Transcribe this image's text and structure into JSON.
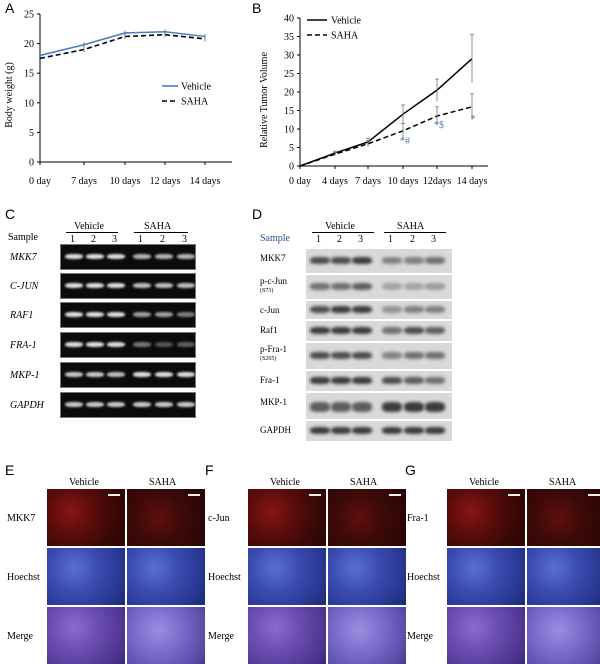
{
  "panels": {
    "A": "A",
    "B": "B",
    "C": "C",
    "D": "D",
    "E": "E",
    "F": "F",
    "G": "G"
  },
  "chartA": {
    "ylabel": "Body weight (g)",
    "yticks": [
      "0",
      "5",
      "10",
      "15",
      "20",
      "25"
    ],
    "xticks": [
      "0 day",
      "7 days",
      "10 days",
      "12 days",
      "14 days"
    ],
    "legend": [
      "Vehicle",
      "SAHA"
    ],
    "colors": {
      "vehicle": "#4a7fc1",
      "saha": "#000000"
    }
  },
  "chartB": {
    "ylabel": "Relative Tumor Volume",
    "yticks": [
      "0",
      "5",
      "10",
      "15",
      "20",
      "25",
      "30",
      "35",
      "40"
    ],
    "xticks": [
      "0 day",
      "4 days",
      "7 days",
      "10 days",
      "12days",
      "14 days"
    ],
    "legend": [
      "Vehicle",
      "SAHA"
    ],
    "annotations": [
      "*#",
      "*$",
      "*"
    ]
  },
  "chart_data": [
    {
      "type": "line",
      "title": "",
      "ylabel": "Body weight (g)",
      "ylim": [
        0,
        25
      ],
      "categories": [
        "0 day",
        "7 days",
        "10 days",
        "12 days",
        "14 days"
      ],
      "series": [
        {
          "name": "Vehicle",
          "values": [
            18,
            19.8,
            21.8,
            22,
            21.2
          ]
        },
        {
          "name": "SAHA",
          "values": [
            17.5,
            19,
            21.2,
            21.5,
            20.8
          ]
        }
      ],
      "legend": "right"
    },
    {
      "type": "line",
      "title": "",
      "ylabel": "Relative Tumor Volume",
      "ylim": [
        0,
        40
      ],
      "categories": [
        "0 day",
        "4 days",
        "7 days",
        "10 days",
        "12days",
        "14 days"
      ],
      "series": [
        {
          "name": "Vehicle",
          "values": [
            0,
            3.5,
            6.5,
            14,
            20.5,
            29
          ],
          "errors": [
            0,
            0.5,
            1,
            2.5,
            3,
            6.5
          ]
        },
        {
          "name": "SAHA",
          "values": [
            0,
            3.2,
            6,
            9.5,
            13.5,
            16
          ],
          "errors": [
            0,
            0.5,
            0.8,
            2,
            2.5,
            3.5
          ]
        }
      ],
      "legend": "top-left"
    }
  ],
  "gelC": {
    "sample": "Sample",
    "groups": [
      "Vehicle",
      "SAHA"
    ],
    "lanes": [
      "1",
      "2",
      "3",
      "1",
      "2",
      "3"
    ],
    "rows": [
      "MKK7",
      "C-JUN",
      "RAF1",
      "FRA-1",
      "MKP-1",
      "GAPDH"
    ]
  },
  "blotD": {
    "sample": "Sample",
    "groups": [
      "Vehicle",
      "SAHA"
    ],
    "lanes": [
      "1",
      "2",
      "3",
      "1",
      "2",
      "3"
    ],
    "rows": [
      {
        "label": "MKK7",
        "sub": ""
      },
      {
        "label": "p-c-Jun",
        "sub": "(S73)"
      },
      {
        "label": "c-Jun",
        "sub": ""
      },
      {
        "label": "Raf1",
        "sub": ""
      },
      {
        "label": "p-Fra-1",
        "sub": "(S265)"
      },
      {
        "label": "Fra-1",
        "sub": ""
      },
      {
        "label": "MKP-1",
        "sub": ""
      },
      {
        "label": "GAPDH",
        "sub": ""
      }
    ]
  },
  "micro": {
    "cols": [
      "Vehicle",
      "SAHA"
    ],
    "E": {
      "rows": [
        "MKK7",
        "Hoechst",
        "Merge"
      ]
    },
    "F": {
      "rows": [
        "c-Jun",
        "Hoechst",
        "Merge"
      ]
    },
    "G": {
      "rows": [
        "Fra-1",
        "Hoechst",
        "Merge"
      ]
    }
  }
}
